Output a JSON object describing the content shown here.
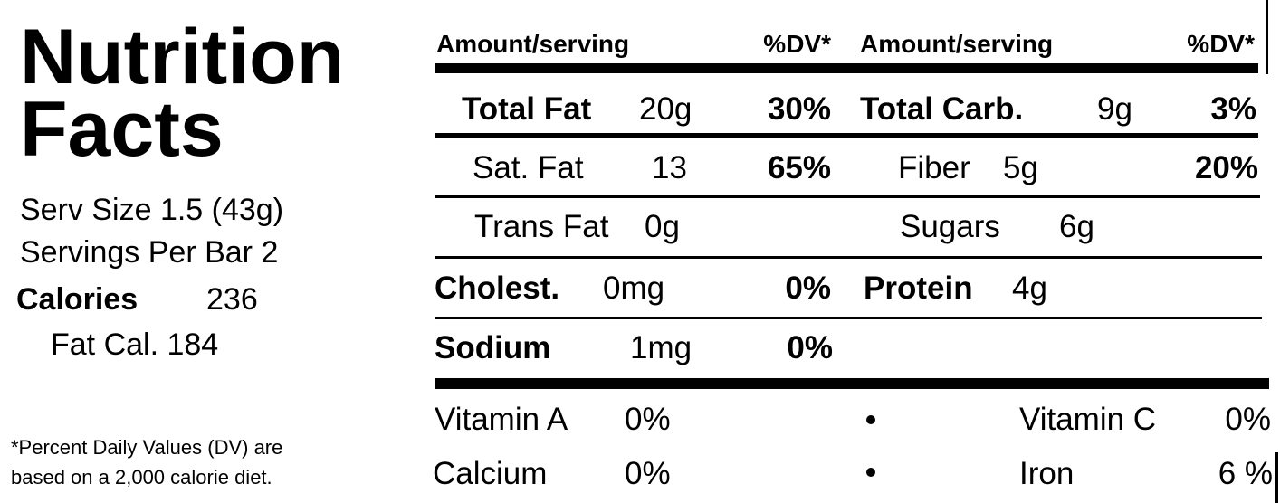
{
  "title": {
    "line1": "Nutrition",
    "line2": "Facts"
  },
  "serving": {
    "size": "Serv Size 1.5 (43g)",
    "per_container": "Servings Per Bar 2",
    "calories_label": "Calories",
    "calories": "236",
    "fat_calories": "Fat Cal. 184"
  },
  "footnote": [
    "*Percent Daily Values (DV) are",
    "based on a 2,000 calorie diet."
  ],
  "table": {
    "header": [
      "Amount/serving",
      "%DV*",
      "Amount/serving",
      "%DV*"
    ],
    "rows": [
      {
        "left": {
          "name": "Total Fat",
          "amount": "20g",
          "dv": "30%"
        },
        "right": {
          "name": "Total Carb.",
          "amount": "9g",
          "dv": "3%"
        }
      },
      {
        "left": {
          "name": "Sat. Fat",
          "amount": "13",
          "dv": "65%"
        },
        "right": {
          "name": "Fiber",
          "amount": "5g",
          "dv": "20%"
        }
      },
      {
        "left": {
          "name": "Trans Fat",
          "amount": "0g"
        },
        "right": {
          "name": "Sugars",
          "amount": "6g"
        }
      },
      {
        "left": {
          "name": "Cholest.",
          "amount": "0mg",
          "dv": "0%"
        },
        "right": {
          "name": "Protein",
          "amount": "4g"
        }
      },
      {
        "left": {
          "name": "Sodium",
          "amount": "1mg",
          "dv": "0%"
        }
      }
    ],
    "vitamins": [
      {
        "left": {
          "name": "Vitamin A",
          "dv": "0%"
        },
        "right": {
          "name": "Vitamin C",
          "dv": "0%"
        }
      },
      {
        "left": {
          "name": "Calcium",
          "dv": "0%"
        },
        "right": {
          "name": "Iron",
          "dv": "6 %"
        }
      }
    ]
  }
}
